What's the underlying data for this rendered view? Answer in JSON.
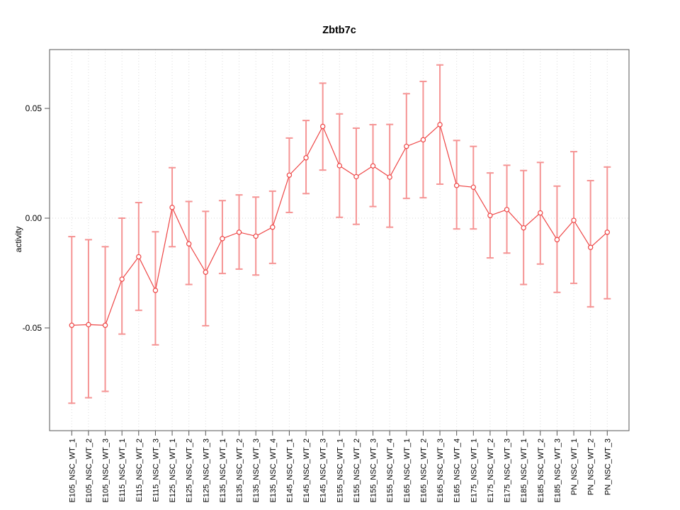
{
  "title": "Zbtb7c",
  "y_axis": {
    "label": "activity",
    "tick_labels": [
      "0.05",
      "0.00",
      "-0.05"
    ]
  },
  "chart_data": {
    "type": "scatter",
    "title": "Zbtb7c",
    "xlabel": "",
    "ylabel": "activity",
    "ylim": [
      -0.0968,
      0.0768
    ],
    "yticks": [
      0.05,
      0.0,
      -0.05
    ],
    "ytick_labels": [
      "0.05",
      "0.00",
      "-0.05"
    ],
    "grid": "vertical-dotted-at-each-category",
    "zero_reference_line": true,
    "legend": "none",
    "marker": "open-circle",
    "colors": {
      "line": "#ee4545",
      "marker": "#ee4545",
      "error_bar": "#f59494",
      "grid": "#dcdcdc",
      "zero_line": "#d8d8d8",
      "box": "#555555",
      "text": "#000000"
    },
    "categories": [
      "E105_NSC_WT_1",
      "E105_NSC_WT_2",
      "E105_NSC_WT_3",
      "E115_NSC_WT_1",
      "E115_NSC_WT_2",
      "E115_NSC_WT_3",
      "E125_NSC_WT_1",
      "E125_NSC_WT_2",
      "E125_NSC_WT_3",
      "E135_NSC_WT_1",
      "E135_NSC_WT_2",
      "E135_NSC_WT_3",
      "E135_NSC_WT_4",
      "E145_NSC_WT_1",
      "E145_NSC_WT_2",
      "E145_NSC_WT_3",
      "E155_NSC_WT_1",
      "E155_NSC_WT_2",
      "E155_NSC_WT_3",
      "E155_NSC_WT_4",
      "E165_NSC_WT_1",
      "E165_NSC_WT_2",
      "E165_NSC_WT_3",
      "E165_NSC_WT_4",
      "E175_NSC_WT_1",
      "E175_NSC_WT_2",
      "E175_NSC_WT_3",
      "E185_NSC_WT_1",
      "E185_NSC_WT_2",
      "E185_NSC_WT_3",
      "PN_NSC_WT_1",
      "PN_NSC_WT_2",
      "PN_NSC_WT_3"
    ],
    "values": [
      -0.0488,
      -0.0485,
      -0.0488,
      -0.0278,
      -0.0176,
      -0.0329,
      0.0049,
      -0.0117,
      -0.0246,
      -0.0093,
      -0.0064,
      -0.0082,
      -0.0041,
      0.0196,
      0.0275,
      0.0418,
      0.0239,
      0.0189,
      0.0238,
      0.0187,
      0.0327,
      0.0357,
      0.0426,
      0.0149,
      0.0141,
      0.0012,
      0.0039,
      -0.0044,
      0.0024,
      -0.0098,
      -0.001,
      -0.0133,
      -0.0064
    ],
    "error_low": [
      -0.0843,
      -0.0818,
      -0.0789,
      -0.0528,
      -0.042,
      -0.0577,
      -0.013,
      -0.0302,
      -0.049,
      -0.0252,
      -0.0232,
      -0.0259,
      -0.0206,
      0.0026,
      0.0112,
      0.0219,
      0.0004,
      -0.0028,
      0.0053,
      -0.0041,
      0.009,
      0.0093,
      0.0155,
      -0.0049,
      -0.0049,
      -0.0181,
      -0.0159,
      -0.0302,
      -0.0209,
      -0.0338,
      -0.0297,
      -0.0404,
      -0.0367
    ],
    "error_high": [
      -0.0084,
      -0.0098,
      -0.013,
      0.0,
      0.0071,
      -0.0062,
      0.023,
      0.0076,
      0.0031,
      0.008,
      0.0106,
      0.0096,
      0.0123,
      0.0365,
      0.0445,
      0.0615,
      0.0475,
      0.041,
      0.0426,
      0.0427,
      0.0567,
      0.0623,
      0.0698,
      0.0354,
      0.0327,
      0.0206,
      0.0241,
      0.0217,
      0.0254,
      0.0146,
      0.0303,
      0.0171,
      0.0233
    ]
  }
}
